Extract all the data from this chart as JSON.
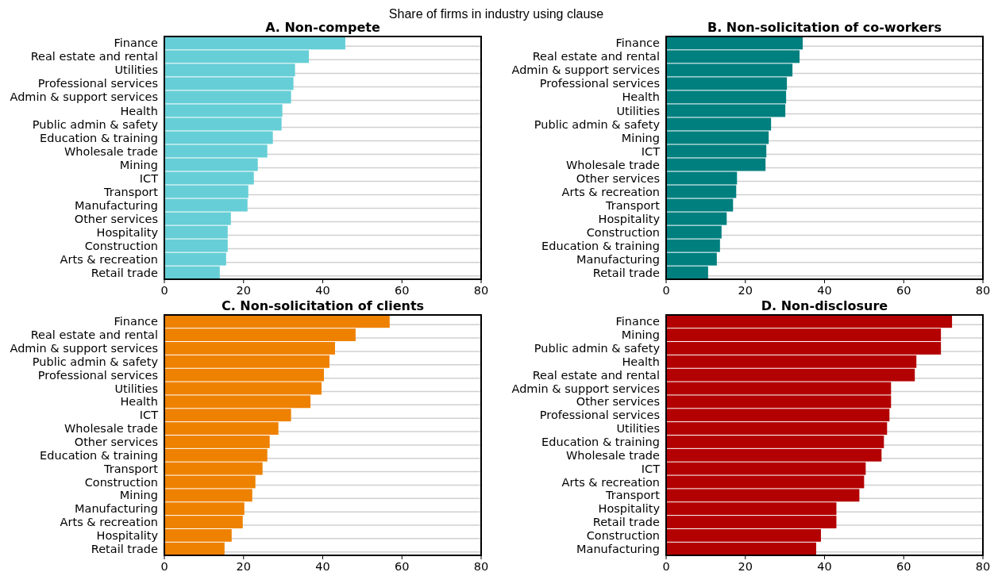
{
  "chart_data": [
    {
      "type": "bar",
      "orientation": "horizontal",
      "title": "A. Non-compete",
      "subtitle": "Share of firms in industry using clause",
      "color": "#66ced6",
      "xlim": [
        0,
        80
      ],
      "xticks": [
        0,
        20,
        40,
        60,
        80
      ],
      "grid": "y",
      "categories": [
        "Finance",
        "Real estate and rental",
        "Utilities",
        "Professional services",
        "Admin & support services",
        "Health",
        "Public admin & safety",
        "Education & training",
        "Wholesale trade",
        "Mining",
        "ICT",
        "Transport",
        "Manufacturing",
        "Other services",
        "Hospitality",
        "Construction",
        "Arts & recreation",
        "Retail trade"
      ],
      "values": [
        45.7,
        36.5,
        33.0,
        32.6,
        32.0,
        29.8,
        29.6,
        27.4,
        26.0,
        23.6,
        22.6,
        21.2,
        21.0,
        16.8,
        16.0,
        16.0,
        15.6,
        14.0
      ]
    },
    {
      "type": "bar",
      "orientation": "horizontal",
      "title": "B. Non-solicitation of co-workers",
      "color": "#007f7f",
      "xlim": [
        0,
        80
      ],
      "xticks": [
        0,
        20,
        40,
        60,
        80
      ],
      "grid": "y",
      "categories": [
        "Finance",
        "Real estate and rental",
        "Admin & support services",
        "Professional services",
        "Health",
        "Utilities",
        "Public admin & safety",
        "Mining",
        "ICT",
        "Wholesale trade",
        "Other services",
        "Arts & recreation",
        "Transport",
        "Hospitality",
        "Construction",
        "Education & training",
        "Manufacturing",
        "Retail trade"
      ],
      "values": [
        34.5,
        33.7,
        31.9,
        30.5,
        30.3,
        30.1,
        26.5,
        25.9,
        25.3,
        25.1,
        17.9,
        17.7,
        16.9,
        15.3,
        14.0,
        13.6,
        12.8,
        10.6
      ]
    },
    {
      "type": "bar",
      "orientation": "horizontal",
      "title": "C. Non-solicitation of clients",
      "color": "#ee8100",
      "xlim": [
        0,
        80
      ],
      "xticks": [
        0,
        20,
        40,
        60,
        80
      ],
      "grid": "y",
      "categories": [
        "Finance",
        "Real estate and rental",
        "Admin & support services",
        "Public admin & safety",
        "Professional services",
        "Utilities",
        "Health",
        "ICT",
        "Wholesale trade",
        "Other services",
        "Education & training",
        "Transport",
        "Construction",
        "Mining",
        "Manufacturing",
        "Arts & recreation",
        "Hospitality",
        "Retail trade"
      ],
      "values": [
        56.9,
        48.3,
        43.1,
        41.7,
        40.3,
        39.7,
        36.9,
        32.0,
        28.8,
        26.6,
        26.0,
        24.8,
        23.0,
        22.2,
        20.2,
        19.8,
        17.0,
        15.2
      ]
    },
    {
      "type": "bar",
      "orientation": "horizontal",
      "title": "D. Non-disclosure",
      "color": "#b30000",
      "xlim": [
        0,
        80
      ],
      "xticks": [
        0,
        20,
        40,
        60,
        80
      ],
      "grid": "y",
      "categories": [
        "Finance",
        "Mining",
        "Public admin & safety",
        "Health",
        "Real estate and rental",
        "Admin & support services",
        "Other services",
        "Professional services",
        "Utilities",
        "Education & training",
        "Wholesale trade",
        "ICT",
        "Arts & recreation",
        "Transport",
        "Hospitality",
        "Retail trade",
        "Construction",
        "Manufacturing"
      ],
      "values": [
        72.2,
        69.4,
        69.4,
        63.2,
        62.8,
        56.8,
        56.8,
        56.4,
        55.8,
        55.0,
        54.4,
        50.4,
        50.0,
        48.8,
        43.0,
        43.0,
        39.1,
        37.9
      ]
    }
  ]
}
